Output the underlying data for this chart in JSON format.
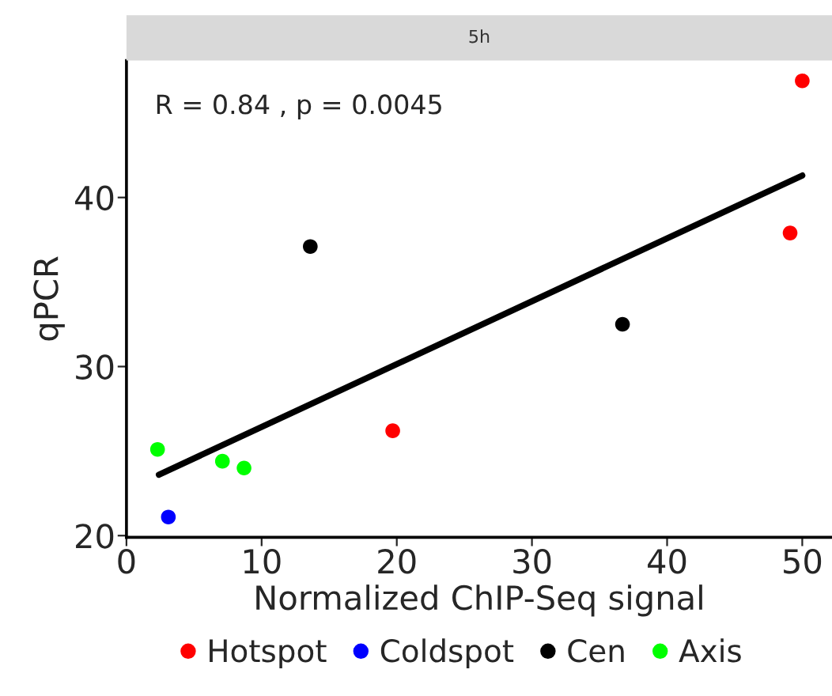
{
  "chart_data": {
    "type": "scatter",
    "title": "5h",
    "xlabel": "Normalized ChIP-Seq signal",
    "ylabel": "qPCR",
    "annotations": [
      "R = 0.84 , p = 0.0045"
    ],
    "series": [
      {
        "name": "Hotspot",
        "color": "#ff0000",
        "x": [
          50.0,
          49.1,
          19.7
        ],
        "values": [
          46.9,
          37.9,
          26.2
        ]
      },
      {
        "name": "Coldspot",
        "color": "#0000ff",
        "x": [
          3.1
        ],
        "values": [
          21.1
        ]
      },
      {
        "name": "Cen",
        "color": "#000000",
        "x": [
          13.6,
          36.7
        ],
        "values": [
          37.1,
          32.5
        ]
      },
      {
        "name": "Axis",
        "color": "#00ff00",
        "x": [
          2.3,
          7.1,
          8.7
        ],
        "values": [
          25.1,
          24.4,
          24.0
        ]
      },
      {
        "type": "line",
        "marker": "none",
        "color": "#000000",
        "x": [
          2.4,
          50.0
        ],
        "values": [
          23.6,
          41.3
        ]
      }
    ],
    "xlim": [
      0,
      52.2
    ],
    "ylim": [
      19.9,
      48.1
    ],
    "xticks": [
      0,
      10,
      20,
      30,
      40,
      50
    ],
    "yticks": [
      20,
      30,
      40
    ],
    "grid": false,
    "legend": "bottom",
    "marker": "circle"
  }
}
